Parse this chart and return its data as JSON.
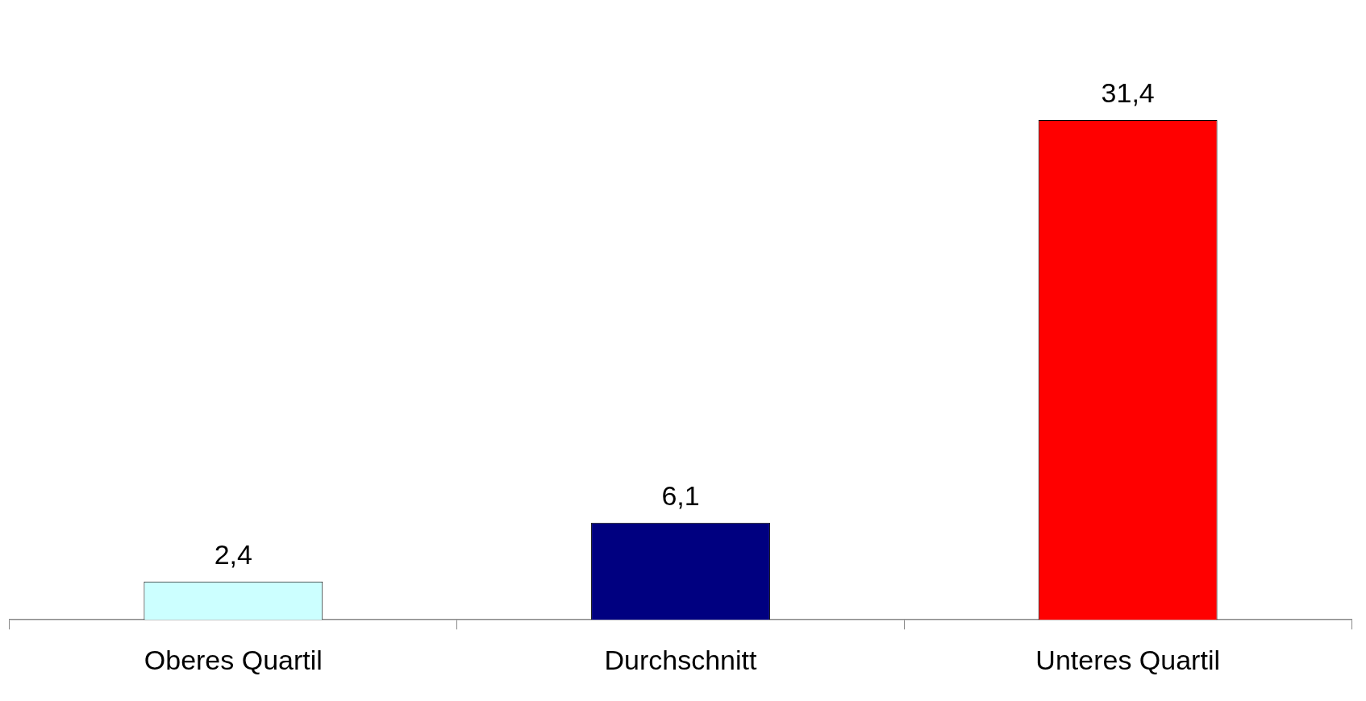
{
  "chart_data": {
    "type": "bar",
    "categories": [
      "Oberes Quartil",
      "Durchschnitt",
      "Unteres Quartil"
    ],
    "values": [
      2.4,
      6.1,
      31.4
    ],
    "colors": [
      "#ccffff",
      "#000080",
      "#ff0000"
    ],
    "value_labels": [
      "2,4",
      "6,1",
      "31,4"
    ],
    "grid": false,
    "legend": false
  }
}
